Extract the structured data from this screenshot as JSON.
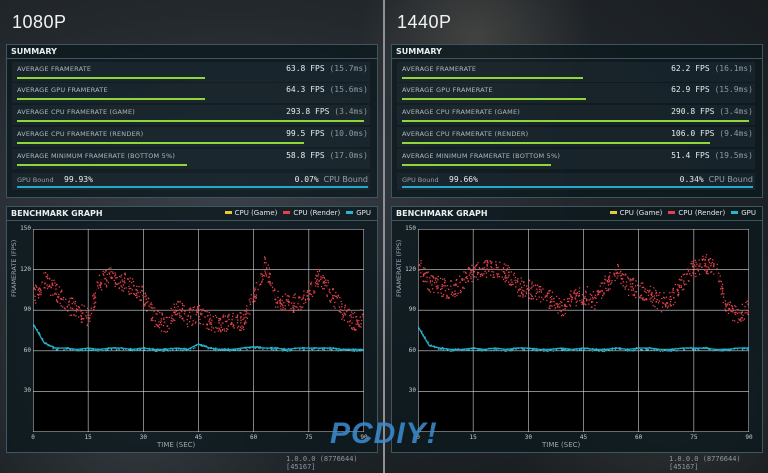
{
  "panels": [
    {
      "title": "1080P",
      "summary_title": "SUMMARY",
      "rows": [
        {
          "label": "AVERAGE FRAMERATE",
          "fps": "63.8 FPS",
          "ms": "(15.7ms)",
          "fill": 0.53
        },
        {
          "label": "AVERAGE GPU FRAMERATE",
          "fps": "64.3 FPS",
          "ms": "(15.6ms)",
          "fill": 0.53
        },
        {
          "label": "AVERAGE CPU FRAMERATE (GAME)",
          "fps": "293.8 FPS",
          "ms": "(3.4ms)",
          "fill": 0.98
        },
        {
          "label": "AVERAGE CPU FRAMERATE (RENDER)",
          "fps": "99.5 FPS",
          "ms": "(10.0ms)",
          "fill": 0.81
        },
        {
          "label": "AVERAGE MINIMUM FRAMERATE (BOTTOM 5%)",
          "fps": "58.8 FPS",
          "ms": "(17.0ms)",
          "fill": 0.48
        }
      ],
      "gpu_bound_label": "GPU Bound",
      "gpu_bound_value": "99.93%",
      "cpu_bound_value": "0.07%",
      "cpu_bound_label": "CPU Bound",
      "graph_title": "BENCHMARK GRAPH",
      "version": "1.0.0.0 (8776644) [45167]"
    },
    {
      "title": "1440P",
      "summary_title": "SUMMARY",
      "rows": [
        {
          "label": "AVERAGE FRAMERATE",
          "fps": "62.2 FPS",
          "ms": "(16.1ms)",
          "fill": 0.51
        },
        {
          "label": "AVERAGE GPU FRAMERATE",
          "fps": "62.9 FPS",
          "ms": "(15.9ms)",
          "fill": 0.52
        },
        {
          "label": "AVERAGE CPU FRAMERATE (GAME)",
          "fps": "290.8 FPS",
          "ms": "(3.4ms)",
          "fill": 0.98
        },
        {
          "label": "AVERAGE CPU FRAMERATE (RENDER)",
          "fps": "106.0 FPS",
          "ms": "(9.4ms)",
          "fill": 0.87
        },
        {
          "label": "AVERAGE MINIMUM FRAMERATE (BOTTOM 5%)",
          "fps": "51.4 FPS",
          "ms": "(19.5ms)",
          "fill": 0.42
        }
      ],
      "gpu_bound_label": "GPU Bound",
      "gpu_bound_value": "99.66%",
      "cpu_bound_value": "0.34%",
      "cpu_bound_label": "CPU Bound",
      "graph_title": "BENCHMARK GRAPH",
      "version": "1.0.0.0 (8776644) [45167]"
    }
  ],
  "legend": [
    {
      "name": "CPU (Game)",
      "color": "#e6c93a"
    },
    {
      "name": "CPU (Render)",
      "color": "#e0434e"
    },
    {
      "name": "GPU",
      "color": "#27b6cf"
    }
  ],
  "watermark": "PCDIY!",
  "chart_data": [
    {
      "type": "scatter",
      "title": "BENCHMARK GRAPH",
      "xlabel": "TIME (SEC)",
      "ylabel": "FRAMERATE (FPS)",
      "xlim": [
        0,
        90
      ],
      "ylim": [
        0,
        150
      ],
      "x_ticks": [
        "0",
        "15",
        "30",
        "45",
        "60",
        "75",
        "90"
      ],
      "y_ticks": [
        "30",
        "60",
        "90",
        "120",
        "150"
      ],
      "series": [
        {
          "name": "CPU (Render)",
          "x": [
            0,
            3,
            6,
            9,
            12,
            15,
            18,
            21,
            24,
            27,
            30,
            33,
            36,
            39,
            42,
            45,
            48,
            51,
            54,
            57,
            60,
            63,
            66,
            69,
            72,
            75,
            78,
            81,
            84,
            87,
            90
          ],
          "values": [
            100,
            112,
            105,
            95,
            90,
            85,
            112,
            115,
            112,
            108,
            100,
            85,
            80,
            92,
            85,
            88,
            82,
            80,
            84,
            82,
            100,
            125,
            98,
            95,
            96,
            105,
            115,
            102,
            90,
            82,
            85
          ]
        },
        {
          "name": "GPU",
          "x": [
            0,
            3,
            6,
            9,
            12,
            15,
            18,
            21,
            24,
            27,
            30,
            33,
            36,
            39,
            42,
            45,
            48,
            51,
            54,
            57,
            60,
            63,
            66,
            69,
            72,
            75,
            78,
            81,
            84,
            87,
            90
          ],
          "values": [
            80,
            66,
            62,
            62,
            61,
            62,
            61,
            62,
            62,
            61,
            62,
            61,
            61,
            62,
            61,
            65,
            62,
            61,
            61,
            62,
            63,
            62,
            62,
            61,
            62,
            62,
            62,
            62,
            61,
            61,
            61
          ]
        }
      ]
    },
    {
      "type": "scatter",
      "title": "BENCHMARK GRAPH",
      "xlabel": "TIME (SEC)",
      "ylabel": "FRAMERATE (FPS)",
      "xlim": [
        0,
        90
      ],
      "ylim": [
        0,
        150
      ],
      "x_ticks": [
        "0",
        "15",
        "30",
        "45",
        "60",
        "75",
        "90"
      ],
      "y_ticks": [
        "30",
        "60",
        "90",
        "120",
        "150"
      ],
      "series": [
        {
          "name": "CPU (Render)",
          "x": [
            0,
            3,
            6,
            9,
            12,
            15,
            18,
            21,
            24,
            27,
            30,
            33,
            36,
            39,
            42,
            45,
            48,
            51,
            54,
            57,
            60,
            63,
            66,
            69,
            72,
            75,
            78,
            81,
            84,
            87,
            90
          ],
          "values": [
            125,
            110,
            108,
            105,
            112,
            118,
            122,
            120,
            118,
            108,
            106,
            104,
            98,
            92,
            100,
            102,
            98,
            110,
            118,
            108,
            106,
            102,
            96,
            100,
            112,
            122,
            125,
            120,
            92,
            85,
            95
          ]
        },
        {
          "name": "GPU",
          "x": [
            0,
            3,
            6,
            9,
            12,
            15,
            18,
            21,
            24,
            27,
            30,
            33,
            36,
            39,
            42,
            45,
            48,
            51,
            54,
            57,
            60,
            63,
            66,
            69,
            72,
            75,
            78,
            81,
            84,
            87,
            90
          ],
          "values": [
            78,
            64,
            62,
            61,
            61,
            62,
            61,
            62,
            61,
            62,
            62,
            61,
            61,
            62,
            61,
            62,
            61,
            61,
            62,
            61,
            62,
            62,
            61,
            61,
            62,
            62,
            62,
            61,
            61,
            62,
            62
          ]
        }
      ]
    }
  ]
}
